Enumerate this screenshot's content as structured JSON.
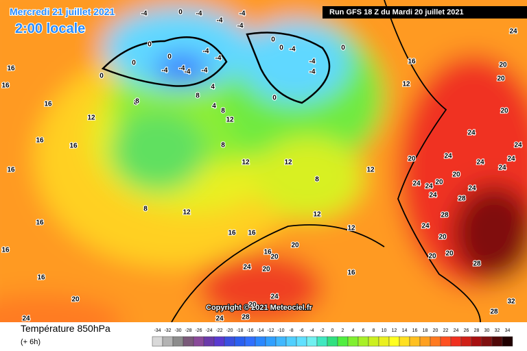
{
  "header": {
    "date": "Mercredi 21 juillet 2021",
    "time": "2:00 locale",
    "run": "Run GFS 18 Z du Mardi 20 juillet 2021"
  },
  "copyright": "Copyright © 2021 Meteociel.fr",
  "footer": {
    "title": "Température 850hPa",
    "lead": "(+ 6h)"
  },
  "scale": {
    "labels": [
      -34,
      -32,
      -30,
      -28,
      -26,
      -24,
      -22,
      -20,
      -18,
      -16,
      -14,
      -12,
      -10,
      -8,
      -6,
      -4,
      -2,
      0,
      2,
      4,
      6,
      8,
      10,
      12,
      14,
      16,
      18,
      20,
      22,
      24,
      26,
      28,
      30,
      32,
      34
    ],
    "colors": [
      "#d9d9d9",
      "#b3b3b3",
      "#8c8c8c",
      "#7a5a7a",
      "#8a4a9a",
      "#6a3aaa",
      "#5a3ad0",
      "#3a50e0",
      "#2a60f0",
      "#3070ff",
      "#2a88ff",
      "#30a0ff",
      "#40b8ff",
      "#50cfff",
      "#60e0ff",
      "#70f0f0",
      "#40e8c0",
      "#30e080",
      "#50ee40",
      "#80f030",
      "#a8f028",
      "#ccf020",
      "#eaf020",
      "#ffff20",
      "#ffe020",
      "#ffc020",
      "#ffa020",
      "#ff7a20",
      "#ff5020",
      "#f03020",
      "#d02018",
      "#a81010",
      "#801010",
      "#500808",
      "#200000"
    ]
  },
  "contours": [
    16,
    16,
    16,
    12,
    16,
    16,
    16,
    16,
    16,
    16,
    20,
    24,
    8,
    12,
    8,
    8,
    12,
    16,
    16,
    16,
    20,
    20,
    24,
    20,
    16,
    12,
    8,
    12,
    12,
    12,
    16,
    12,
    20,
    24,
    24,
    24,
    24,
    24,
    20,
    24,
    20,
    24,
    28,
    24,
    28,
    20,
    20,
    20,
    28,
    24,
    24,
    24,
    20,
    20,
    24,
    20,
    28,
    32,
    24,
    28,
    24,
    20,
    -4,
    -4,
    -4,
    -4,
    -4,
    -4,
    -4,
    -4,
    -4,
    0,
    -4,
    0,
    0,
    0,
    0,
    0,
    0,
    0,
    4,
    8,
    4,
    12,
    8,
    8,
    0,
    -4,
    -4,
    -4,
    -4
  ]
}
